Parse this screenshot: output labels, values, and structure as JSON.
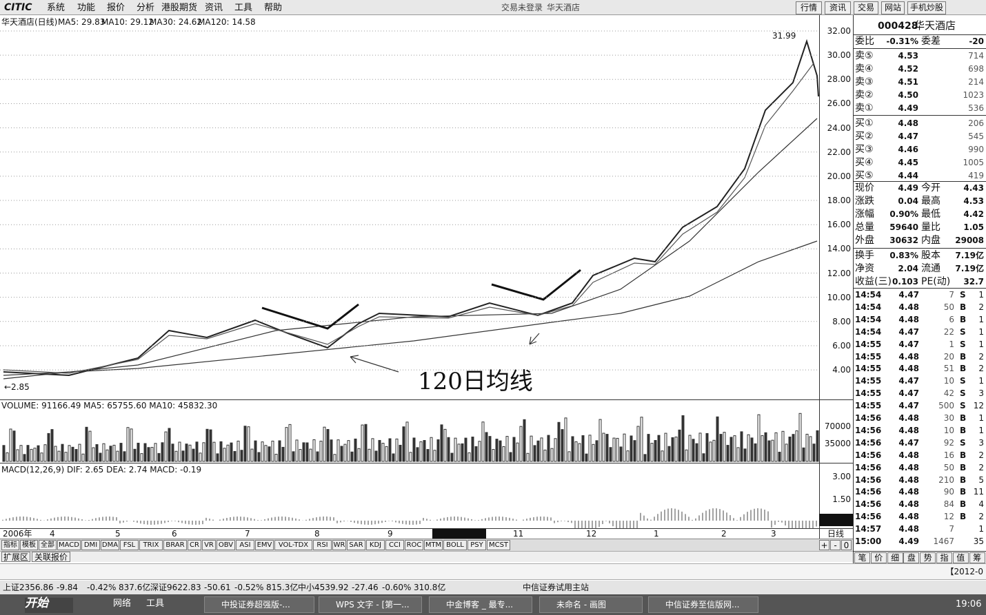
{
  "menu": {
    "logo": "CITIC",
    "items": [
      "系统",
      "功能",
      "报价",
      "分析",
      "港股期货",
      "资讯",
      "工具",
      "帮助"
    ],
    "status": "交易未登录",
    "stock": "华天酒店",
    "buttons": [
      "行情",
      "资讯",
      "交易",
      "网站",
      "手机炒股"
    ]
  },
  "chart": {
    "header": "华天酒店(日线)",
    "ma": [
      "MA5: 29.83",
      "MA10: 29.12",
      "MA30: 24.62",
      "MA120: 14.58"
    ],
    "price_ticks": [
      "32.00",
      "30.00",
      "28.00",
      "26.00",
      "24.00",
      "22.00",
      "20.00",
      "18.00",
      "16.00",
      "14.00",
      "12.00",
      "10.00",
      "8.00",
      "6.00",
      "4.00"
    ],
    "high_label": "31.99",
    "low_label": "←2.85",
    "annotation": "120日均线"
  },
  "volume": {
    "header": "VOLUME: 91166.49  MA5: 65755.60  MA10: 45832.30",
    "ticks": [
      "70000",
      "35000"
    ]
  },
  "macd": {
    "header": "MACD(12,26,9)  DIF: 2.65  DEA: 2.74  MACD: -0.19",
    "ticks": [
      "3.00",
      "1.50"
    ]
  },
  "date_axis": {
    "year": "2006年",
    "months": [
      "4",
      "5",
      "6",
      "7",
      "8",
      "9",
      "11",
      "12",
      "1",
      "2",
      "3"
    ],
    "period": "日线"
  },
  "tabs": [
    "指标",
    "模板",
    "全部",
    "MACD",
    "DMI",
    "DMA",
    "FSL",
    "TRIX",
    "BRAR",
    "CR",
    "VR",
    "OBV",
    "ASI",
    "EMV",
    "VOL-TDX",
    "RSI",
    "WR",
    "SAR",
    "KDJ",
    "CCI",
    "ROC",
    "MTM",
    "BOLL",
    "PSY",
    "MCST"
  ],
  "tab_controls": [
    "+",
    "-",
    "0"
  ],
  "sub_tabs": [
    "扩展区",
    "关联报价"
  ],
  "quote": {
    "code": "000428",
    "name": "华天酒店",
    "weibi": [
      "委比",
      "-0.31%",
      "委差",
      "-20"
    ],
    "book": [
      [
        "卖⑤",
        "4.53",
        "714"
      ],
      [
        "卖④",
        "4.52",
        "698"
      ],
      [
        "卖③",
        "4.51",
        "214"
      ],
      [
        "卖②",
        "4.50",
        "1023"
      ],
      [
        "卖①",
        "4.49",
        "536"
      ],
      [
        "买①",
        "4.48",
        "206"
      ],
      [
        "买②",
        "4.47",
        "545"
      ],
      [
        "买③",
        "4.46",
        "990"
      ],
      [
        "买④",
        "4.45",
        "1005"
      ],
      [
        "买⑤",
        "4.44",
        "419"
      ]
    ],
    "stats": [
      [
        "现价",
        "4.49",
        "今开",
        "4.43"
      ],
      [
        "涨跌",
        "0.04",
        "最高",
        "4.53"
      ],
      [
        "涨幅",
        "0.90%",
        "最低",
        "4.42"
      ],
      [
        "总量",
        "59640",
        "量比",
        "1.05"
      ],
      [
        "外盘",
        "30632",
        "内盘",
        "29008"
      ],
      [
        "换手",
        "0.83%",
        "股本",
        "7.19亿"
      ],
      [
        "净资",
        "2.04",
        "流通",
        "7.19亿"
      ],
      [
        "收益(三)",
        "0.103",
        "PE(动)",
        "32.7"
      ]
    ],
    "trades": [
      {
        "time": "14:54",
        "price": "4.47",
        "volume": "7",
        "side": "S",
        "count": "1"
      },
      {
        "time": "14:54",
        "price": "4.48",
        "volume": "50",
        "side": "B",
        "count": "2"
      },
      {
        "time": "14:54",
        "price": "4.48",
        "volume": "6",
        "side": "B",
        "count": "1"
      },
      {
        "time": "14:54",
        "price": "4.47",
        "volume": "22",
        "side": "S",
        "count": "1"
      },
      {
        "time": "14:55",
        "price": "4.47",
        "volume": "1",
        "side": "S",
        "count": "1"
      },
      {
        "time": "14:55",
        "price": "4.48",
        "volume": "20",
        "side": "B",
        "count": "2"
      },
      {
        "time": "14:55",
        "price": "4.48",
        "volume": "51",
        "side": "B",
        "count": "2"
      },
      {
        "time": "14:55",
        "price": "4.47",
        "volume": "10",
        "side": "S",
        "count": "1"
      },
      {
        "time": "14:55",
        "price": "4.47",
        "volume": "42",
        "side": "S",
        "count": "3"
      },
      {
        "time": "14:55",
        "price": "4.47",
        "volume": "500",
        "side": "S",
        "count": "12"
      },
      {
        "time": "14:56",
        "price": "4.48",
        "volume": "30",
        "side": "B",
        "count": "1"
      },
      {
        "time": "14:56",
        "price": "4.48",
        "volume": "10",
        "side": "B",
        "count": "1"
      },
      {
        "time": "14:56",
        "price": "4.47",
        "volume": "92",
        "side": "S",
        "count": "3"
      },
      {
        "time": "14:56",
        "price": "4.48",
        "volume": "16",
        "side": "B",
        "count": "2"
      },
      {
        "time": "14:56",
        "price": "4.48",
        "volume": "50",
        "side": "B",
        "count": "2"
      },
      {
        "time": "14:56",
        "price": "4.48",
        "volume": "210",
        "side": "B",
        "count": "5"
      },
      {
        "time": "14:56",
        "price": "4.48",
        "volume": "90",
        "side": "B",
        "count": "11"
      },
      {
        "time": "14:56",
        "price": "4.48",
        "volume": "84",
        "side": "B",
        "count": "4"
      },
      {
        "time": "14:56",
        "price": "4.48",
        "volume": "12",
        "side": "B",
        "count": "2"
      },
      {
        "time": "14:57",
        "price": "4.48",
        "volume": "7",
        "count": "1"
      },
      {
        "time": "15:00",
        "price": "4.49",
        "volume": "1467",
        "count": "35"
      }
    ],
    "tabs": [
      "笔",
      "价",
      "细",
      "盘",
      "势",
      "指",
      "值",
      "筹"
    ]
  },
  "scroll_label": "【2012-0",
  "status_bar": {
    "indices": [
      [
        "上证2356.86",
        "-9.84",
        "-0.42%",
        "837.6亿"
      ],
      [
        "深证9622.83",
        "-50.61",
        "-0.52%",
        "815.3亿"
      ],
      [
        "中小4539.92",
        "-27.46",
        "-0.60%",
        "310.8亿"
      ]
    ],
    "server": "中信证券试用主站"
  },
  "taskbar": {
    "start": "开始",
    "tools": [
      "网络",
      "工具"
    ],
    "windows": [
      "中投证券超强版-...",
      "WPS 文字 - [第一...",
      "中金博客 _ 最专...",
      "未命名 - 画图",
      "中信证券至信版网..."
    ],
    "clock": "19:06"
  }
}
